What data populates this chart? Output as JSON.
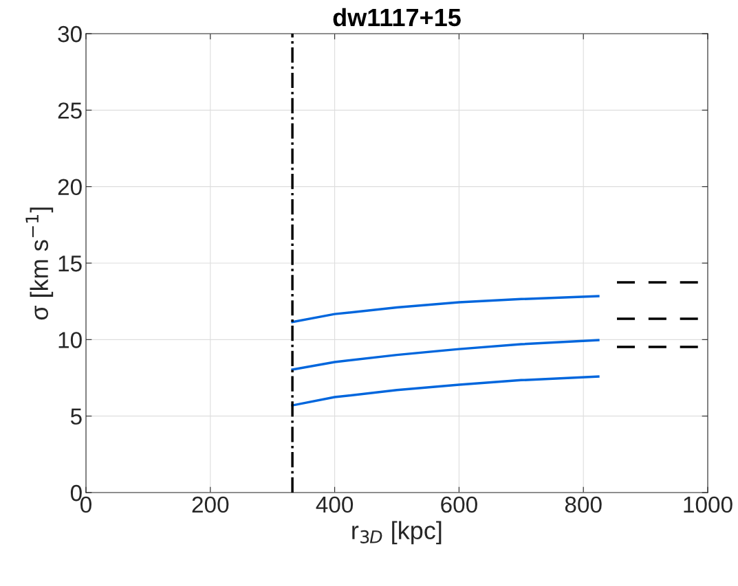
{
  "chart_data": {
    "type": "line",
    "title": "dw1117+15",
    "xlabel": "r$_{3D}$ [kpc]",
    "ylabel": "σ [km s$^{−1}$]",
    "xlim": [
      0,
      1000
    ],
    "xticks": [
      0,
      200,
      400,
      600,
      800,
      1000
    ],
    "ylim": [
      0,
      30
    ],
    "yticks": [
      0,
      5,
      10,
      15,
      20,
      25,
      30
    ],
    "grid": true,
    "marker": "none",
    "series": [
      {
        "color": "#0066dd",
        "line_style": "solid",
        "x": [
          332,
          400,
          500,
          600,
          700,
          824
        ],
        "values": [
          11.15,
          11.67,
          12.1,
          12.44,
          12.65,
          12.84
        ]
      },
      {
        "color": "#0066dd",
        "line_style": "solid",
        "x": [
          332,
          400,
          500,
          600,
          700,
          824
        ],
        "values": [
          8.04,
          8.53,
          9.0,
          9.38,
          9.7,
          9.97
        ]
      },
      {
        "color": "#0066dd",
        "line_style": "solid",
        "x": [
          332,
          400,
          500,
          600,
          700,
          824
        ],
        "values": [
          5.7,
          6.24,
          6.7,
          7.05,
          7.35,
          7.59
        ]
      },
      {
        "color": "#000000",
        "line_style": "dashed",
        "x": [
          854,
          985
        ],
        "values": [
          13.74,
          13.74
        ]
      },
      {
        "color": "#000000",
        "line_style": "dashed",
        "x": [
          854,
          985
        ],
        "values": [
          11.36,
          11.36
        ]
      },
      {
        "color": "#000000",
        "line_style": "dashed",
        "x": [
          854,
          985
        ],
        "values": [
          9.52,
          9.52
        ]
      }
    ],
    "ref_lines": [
      {
        "axis": "x",
        "value": 332,
        "color": "#000000",
        "line_style": "dashdot"
      }
    ]
  }
}
